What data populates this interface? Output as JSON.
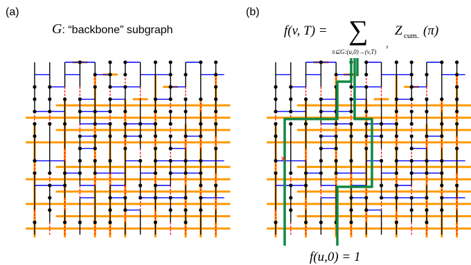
{
  "panel_a": {
    "label": "(a)",
    "title_var": "G",
    "title_rest": ": “backbone” subgraph"
  },
  "panel_b": {
    "label": "(b)",
    "formula_lhs": "f(v, T) =",
    "sum_symbol": "∑",
    "sum_subscript": "π⊆G:(u,0)→(v,T)",
    "arrow_over": "π",
    "formula_Z": "Z",
    "formula_Z_sub": "cum.",
    "formula_Z_arg": "(π)",
    "bottom_formula": "f(u,0) = 1",
    "defect_mark": "×"
  },
  "colors": {
    "vertical_edge": "#000000",
    "horizontal_edge": "#0000ff",
    "broken_edge": "#ff0000",
    "backbone": "#ff9900",
    "path": "#118844",
    "defect": "#ff0000"
  }
}
